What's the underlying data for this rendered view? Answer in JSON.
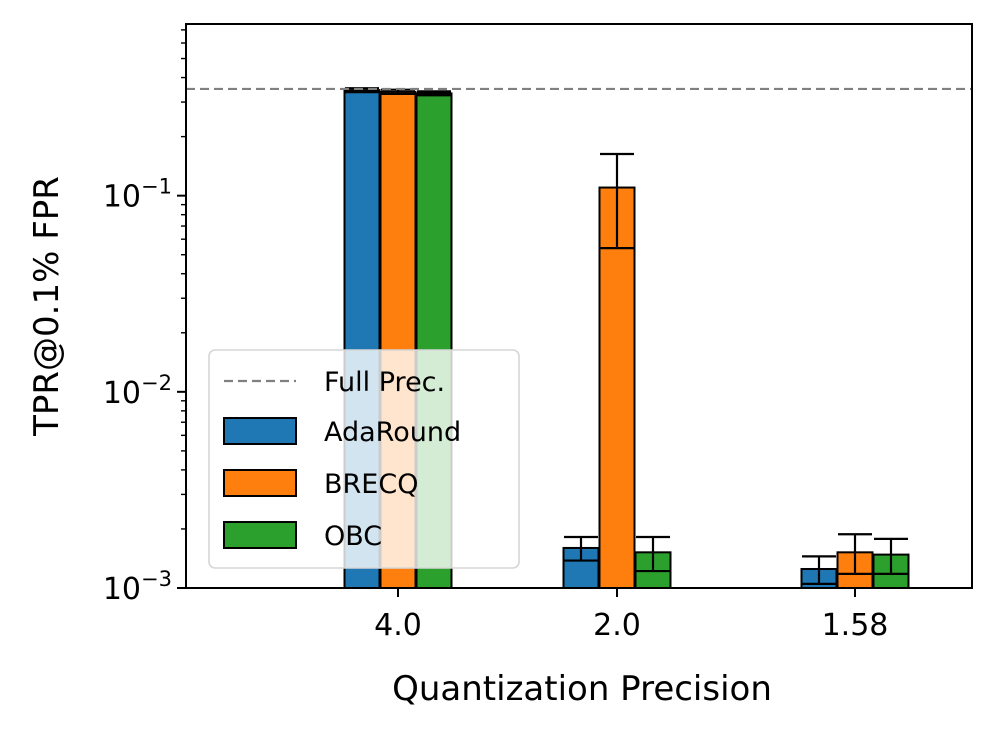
{
  "chart_data": {
    "type": "bar",
    "yscale": "log",
    "title": "",
    "xlabel": "Quantization Precision",
    "ylabel": "TPR@0.1% FPR",
    "categories": [
      "4.0",
      "2.0",
      "1.58"
    ],
    "ylim": [
      0.001,
      0.75
    ],
    "y_major_ticks": [
      {
        "value": 0.1,
        "base": "10",
        "exp": "−1"
      },
      {
        "value": 0.01,
        "base": "10",
        "exp": "−2"
      },
      {
        "value": 0.001,
        "base": "10",
        "exp": "−3"
      }
    ],
    "reference_line": {
      "name": "Full Prec.",
      "value": 0.35,
      "color": "#808080"
    },
    "series": [
      {
        "name": "AdaRound",
        "color": "#1f77b4",
        "values": [
          0.345,
          0.0016,
          0.00125
        ],
        "err_low": [
          0.337,
          0.00138,
          0.00105
        ],
        "err_high": [
          0.353,
          0.00182,
          0.00145
        ]
      },
      {
        "name": "BRECQ",
        "color": "#ff7f0e",
        "values": [
          0.338,
          0.11,
          0.00152
        ],
        "err_low": [
          0.33,
          0.054,
          0.00118
        ],
        "err_high": [
          0.347,
          0.163,
          0.00188
        ]
      },
      {
        "name": "OBC",
        "color": "#2ca02c",
        "values": [
          0.332,
          0.00152,
          0.00148
        ],
        "err_low": [
          0.325,
          0.00122,
          0.00118
        ],
        "err_high": [
          0.34,
          0.00182,
          0.00178
        ]
      }
    ],
    "legend": {
      "position": "lower-left",
      "entries": [
        "Full Prec.",
        "AdaRound",
        "BRECQ",
        "OBC"
      ]
    },
    "grid": false
  }
}
